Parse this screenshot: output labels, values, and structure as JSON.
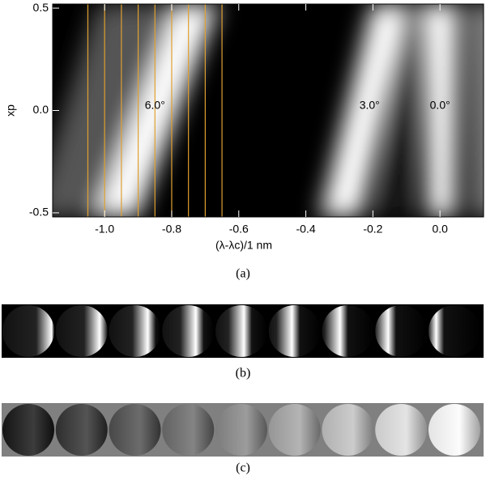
{
  "chart_data": {
    "type": "image",
    "xlabel": "(λ-λc)/1 nm",
    "ylabel": "xp",
    "xlim": [
      -1.155,
      0.13
    ],
    "ylim": [
      -0.52,
      0.52
    ],
    "xticks": [
      {
        "value": -1,
        "label": "-1.0"
      },
      -0.8,
      -0.6,
      -0.4,
      -0.2,
      {
        "value": 0,
        "label": "0.0"
      }
    ],
    "yticks": [
      -0.5,
      {
        "value": 0,
        "label": "0.0"
      },
      0.5
    ],
    "marker_lines": [
      -1.05,
      -1.0,
      -0.95,
      -0.9,
      -0.85,
      -0.8,
      -0.75,
      -0.7,
      -0.65
    ],
    "marker_color": "#e0a030",
    "annotations": [
      {
        "text": "6.0°",
        "x": -0.85
      },
      {
        "text": "3.0°",
        "x": -0.21
      },
      {
        "text": "0.0°",
        "x": 0.0
      }
    ],
    "captions": [
      "(a)",
      "(b)",
      "(c)"
    ]
  }
}
